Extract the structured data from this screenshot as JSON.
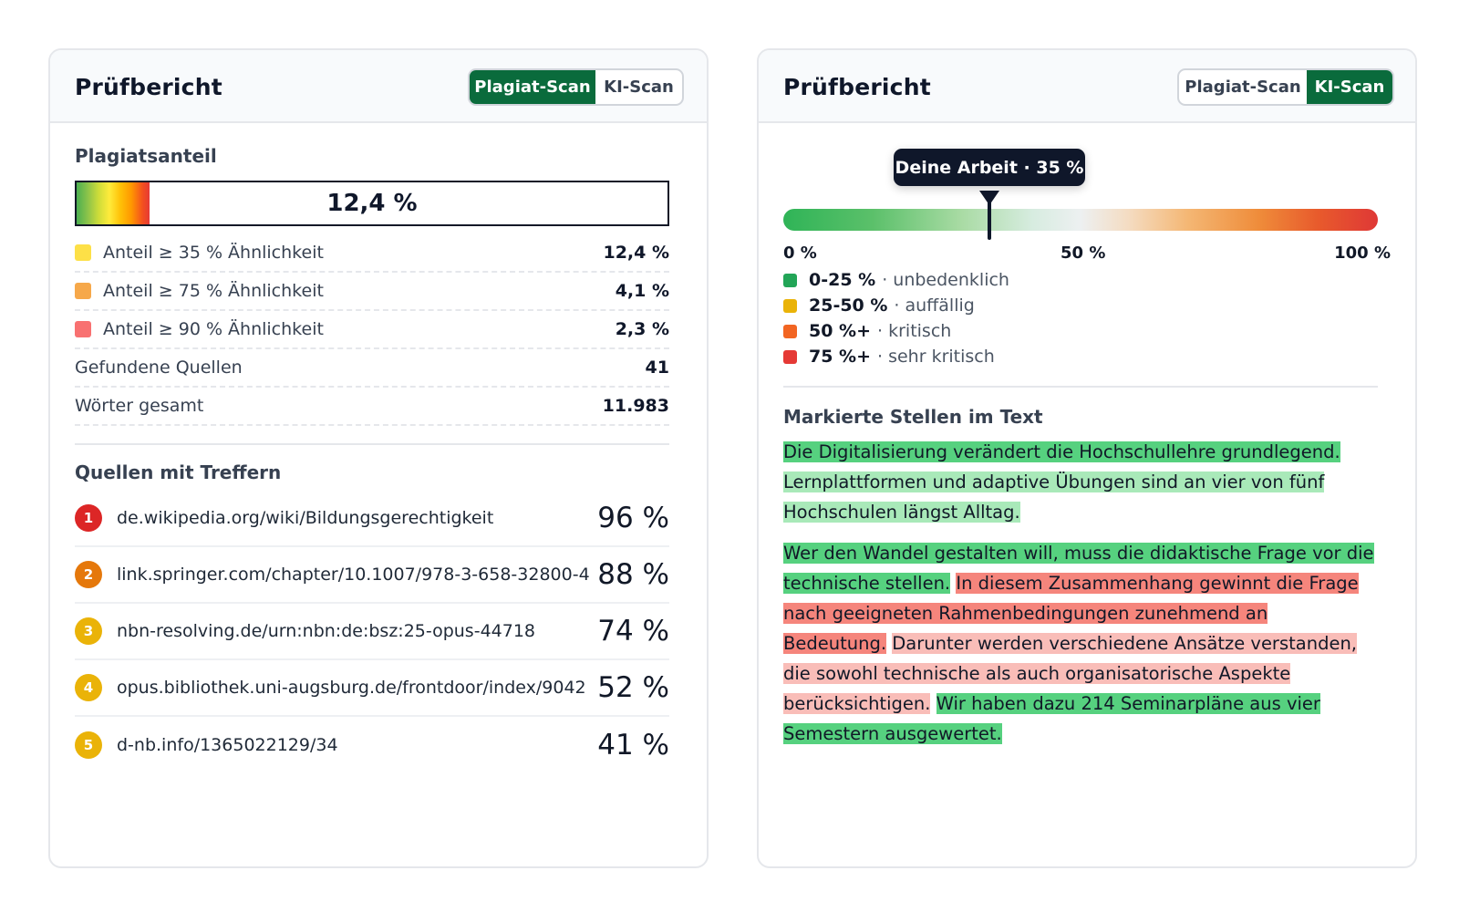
{
  "left_card": {
    "title": "Prüfbericht",
    "tabs": [
      {
        "label": "Plagiat-Scan",
        "active": true
      },
      {
        "label": "KI-Scan",
        "active": false
      }
    ],
    "plagiarism": {
      "label": "Plagiatsanteil",
      "value_text": "12,4 %",
      "fill_fraction": 0.124
    },
    "stats": [
      {
        "label": "Anteil ≥ 35 % Ähnlichkeit",
        "value": "12,4 %",
        "color": "#fde047"
      },
      {
        "label": "Anteil ≥ 75 % Ähnlichkeit",
        "value": "4,1 %",
        "color": "#f6a84a"
      },
      {
        "label": "Anteil ≥ 90 % Ähnlichkeit",
        "value": "2,3 %",
        "color": "#f87171"
      },
      {
        "label": "Gefundene Quellen",
        "value": "41"
      },
      {
        "label": "Wörter gesamt",
        "value": "11.983"
      }
    ],
    "sources_heading": "Quellen mit Treffern",
    "sources": [
      {
        "rank": "1",
        "url": "de.wikipedia.org/wiki/Bildungsgerechtigkeit",
        "percent": "96 %",
        "color": "#dc2626"
      },
      {
        "rank": "2",
        "url": "link.springer.com/chapter/10.1007/978-3-658-32800-4",
        "percent": "88 %",
        "color": "#e5780b"
      },
      {
        "rank": "3",
        "url": "nbn-resolving.de/urn:nbn:de:bsz:25-opus-44718",
        "percent": "74 %",
        "color": "#eab308"
      },
      {
        "rank": "4",
        "url": "opus.bibliothek.uni-augsburg.de/frontdoor/index/9042",
        "percent": "52 %",
        "color": "#eab308"
      },
      {
        "rank": "5",
        "url": "d-nb.info/1365022129/34",
        "percent": "41 %",
        "color": "#eab308"
      }
    ]
  },
  "right_card": {
    "title": "Prüfbericht",
    "tabs": [
      {
        "label": "Plagiat-Scan",
        "active": false
      },
      {
        "label": "KI-Scan",
        "active": true
      }
    ],
    "marker": {
      "label": "Deine Arbeit · 35 %",
      "value_percent": 35
    },
    "scale_labels": {
      "min": "0 %",
      "mid": "50 %",
      "max": "100 %"
    },
    "legend": [
      {
        "range": "0-25 %",
        "desc": "· unbedenklich",
        "color": "#22a557"
      },
      {
        "range": "25-50 %",
        "desc": "· auffällig",
        "color": "#eab308"
      },
      {
        "range": "50 %+",
        "desc": "· kritisch",
        "color": "#f26522"
      },
      {
        "range": "75 %+",
        "desc": "· sehr kritisch",
        "color": "#e53935"
      }
    ],
    "marked_heading": "Markierte Stellen im Text",
    "paragraphs": [
      {
        "segments": [
          {
            "text": "Die Digitalisierung verändert die Hochschullehre grundlegend.",
            "level": "green"
          },
          {
            "text": "Lernplattformen und adaptive Übungen sind an vier von fünf Hochschulen längst Alltag.",
            "level": "lgreen"
          }
        ]
      },
      {
        "segments": [
          {
            "text": "Wer den Wandel gestalten will, muss die didaktische Frage vor die technische stellen.",
            "level": "green"
          },
          {
            "text": "In diesem Zusammenhang gewinnt die Frage nach geeigneten Rahmenbedingungen zunehmend an Bedeutung.",
            "level": "red"
          },
          {
            "text": "Darunter werden verschiedene Ansätze verstanden, die sowohl technische als auch organisatorische Aspekte berücksichtigen.",
            "level": "lred"
          },
          {
            "text": "Wir haben dazu 214 Seminarpläne aus vier Semestern ausgewertet.",
            "level": "green"
          }
        ]
      }
    ]
  }
}
